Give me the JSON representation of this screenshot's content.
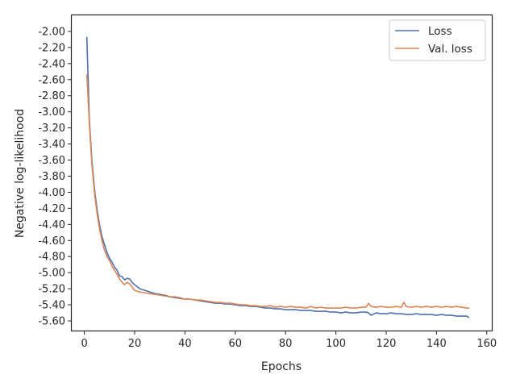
{
  "chart_data": {
    "type": "line",
    "xlabel": "Epochs",
    "ylabel": "Negative log-likelihood",
    "xlim": [
      -5,
      162
    ],
    "ylim": [
      -5.72,
      -1.8
    ],
    "xticks": [
      0,
      20,
      40,
      60,
      80,
      100,
      120,
      140,
      160
    ],
    "xtick_labels": [
      "0",
      "20",
      "40",
      "60",
      "80",
      "100",
      "120",
      "140",
      "160"
    ],
    "yticks": [
      -2.0,
      -2.2,
      -2.4,
      -2.6,
      -2.8,
      -3.0,
      -3.2,
      -3.4,
      -3.6,
      -3.8,
      -4.0,
      -4.2,
      -4.4,
      -4.6,
      -4.8,
      -5.0,
      -5.2,
      -5.4,
      -5.6
    ],
    "ytick_labels": [
      "-2.00",
      "-2.20",
      "-2.40",
      "-2.60",
      "-2.80",
      "-3.00",
      "-3.20",
      "-3.40",
      "-3.60",
      "-3.80",
      "-4.00",
      "-4.20",
      "-4.40",
      "-4.60",
      "-4.80",
      "-5.00",
      "-5.20",
      "-5.40",
      "-5.60"
    ],
    "grid": false,
    "legend_position": "top-right",
    "series": [
      {
        "name": "Loss",
        "color": "#4c72b0",
        "x": [
          1,
          2,
          3,
          4,
          5,
          6,
          7,
          8,
          9,
          10,
          11,
          12,
          13,
          14,
          15,
          16,
          17,
          18,
          19,
          20,
          22,
          24,
          26,
          28,
          30,
          32,
          34,
          36,
          38,
          40,
          42,
          44,
          46,
          48,
          50,
          52,
          54,
          56,
          58,
          60,
          62,
          64,
          66,
          68,
          70,
          72,
          74,
          76,
          78,
          80,
          82,
          84,
          86,
          88,
          90,
          92,
          94,
          96,
          98,
          100,
          102,
          104,
          106,
          108,
          110,
          112,
          113,
          114,
          116,
          118,
          120,
          122,
          124,
          126,
          128,
          130,
          132,
          134,
          136,
          138,
          140,
          142,
          144,
          146,
          148,
          150,
          152,
          153
        ],
        "y": [
          -2.07,
          -3.1,
          -3.6,
          -3.95,
          -4.2,
          -4.4,
          -4.55,
          -4.65,
          -4.75,
          -4.82,
          -4.87,
          -4.93,
          -4.97,
          -5.04,
          -5.05,
          -5.09,
          -5.07,
          -5.08,
          -5.12,
          -5.15,
          -5.2,
          -5.22,
          -5.24,
          -5.26,
          -5.27,
          -5.28,
          -5.3,
          -5.31,
          -5.32,
          -5.33,
          -5.33,
          -5.34,
          -5.35,
          -5.36,
          -5.37,
          -5.38,
          -5.38,
          -5.39,
          -5.39,
          -5.4,
          -5.41,
          -5.41,
          -5.42,
          -5.42,
          -5.43,
          -5.44,
          -5.44,
          -5.45,
          -5.45,
          -5.46,
          -5.46,
          -5.46,
          -5.47,
          -5.47,
          -5.47,
          -5.48,
          -5.48,
          -5.48,
          -5.49,
          -5.49,
          -5.5,
          -5.49,
          -5.5,
          -5.5,
          -5.49,
          -5.49,
          -5.5,
          -5.53,
          -5.5,
          -5.51,
          -5.51,
          -5.5,
          -5.51,
          -5.51,
          -5.52,
          -5.52,
          -5.51,
          -5.52,
          -5.52,
          -5.52,
          -5.53,
          -5.52,
          -5.53,
          -5.53,
          -5.54,
          -5.54,
          -5.54,
          -5.56
        ]
      },
      {
        "name": "Val. loss",
        "color": "#dd8452",
        "x": [
          1,
          2,
          3,
          4,
          5,
          6,
          7,
          8,
          9,
          10,
          11,
          12,
          13,
          14,
          15,
          16,
          17,
          18,
          19,
          20,
          22,
          24,
          26,
          28,
          30,
          32,
          34,
          36,
          38,
          40,
          42,
          44,
          46,
          48,
          50,
          52,
          54,
          56,
          58,
          60,
          62,
          64,
          66,
          68,
          70,
          72,
          74,
          76,
          78,
          80,
          82,
          84,
          86,
          88,
          90,
          92,
          94,
          96,
          98,
          100,
          102,
          104,
          106,
          108,
          110,
          112,
          113,
          114,
          116,
          118,
          120,
          122,
          124,
          126,
          127,
          128,
          130,
          132,
          134,
          136,
          138,
          140,
          142,
          144,
          146,
          148,
          150,
          152,
          153
        ],
        "y": [
          -2.53,
          -3.15,
          -3.65,
          -4.0,
          -4.25,
          -4.45,
          -4.6,
          -4.72,
          -4.8,
          -4.85,
          -4.92,
          -4.97,
          -5.02,
          -5.08,
          -5.12,
          -5.15,
          -5.12,
          -5.14,
          -5.18,
          -5.22,
          -5.24,
          -5.25,
          -5.26,
          -5.27,
          -5.28,
          -5.29,
          -5.3,
          -5.3,
          -5.31,
          -5.33,
          -5.33,
          -5.34,
          -5.34,
          -5.35,
          -5.36,
          -5.37,
          -5.37,
          -5.38,
          -5.38,
          -5.39,
          -5.4,
          -5.4,
          -5.41,
          -5.41,
          -5.42,
          -5.42,
          -5.41,
          -5.43,
          -5.42,
          -5.43,
          -5.42,
          -5.43,
          -5.43,
          -5.44,
          -5.42,
          -5.44,
          -5.43,
          -5.44,
          -5.44,
          -5.44,
          -5.44,
          -5.43,
          -5.44,
          -5.44,
          -5.43,
          -5.43,
          -5.38,
          -5.42,
          -5.43,
          -5.42,
          -5.43,
          -5.43,
          -5.42,
          -5.43,
          -5.37,
          -5.42,
          -5.43,
          -5.42,
          -5.43,
          -5.42,
          -5.43,
          -5.42,
          -5.43,
          -5.42,
          -5.43,
          -5.42,
          -5.43,
          -5.44,
          -5.44
        ]
      }
    ]
  }
}
